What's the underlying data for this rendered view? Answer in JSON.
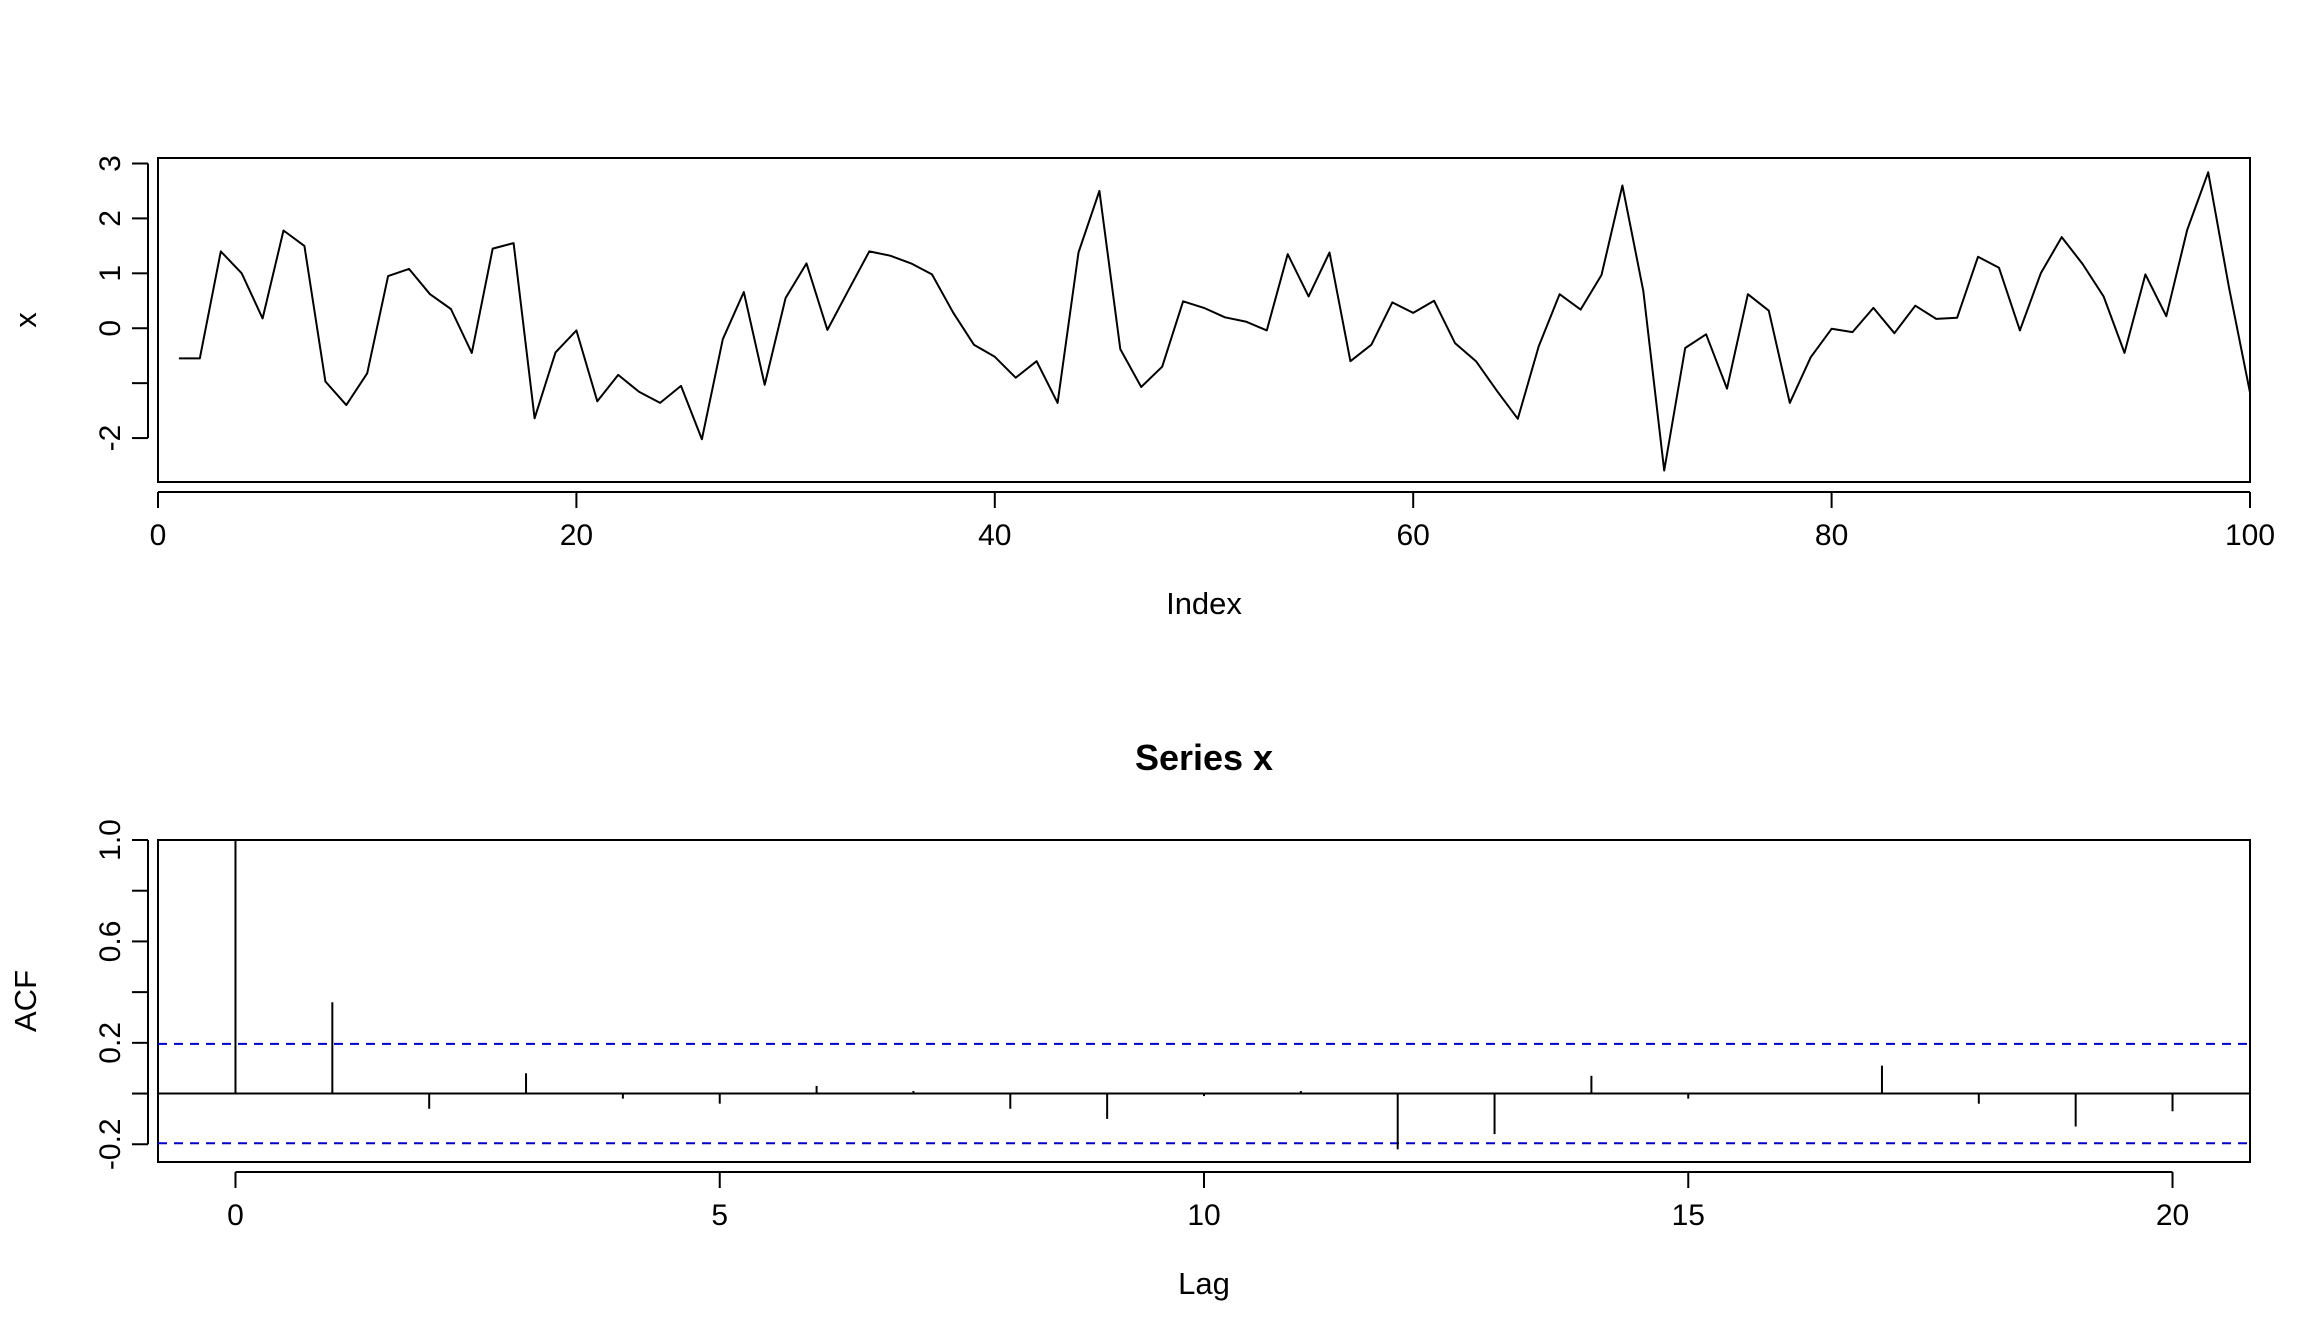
{
  "chart_data": [
    {
      "type": "line",
      "title": "",
      "xlabel": "Index",
      "ylabel": "x",
      "xlim": [
        0,
        100
      ],
      "ylim": [
        -2.8,
        3.1
      ],
      "xticks": [
        0,
        20,
        40,
        60,
        80,
        100
      ],
      "yticks": [
        -2,
        -1,
        0,
        1,
        2,
        3
      ],
      "ytick_labels": [
        "-2",
        "",
        "0",
        "1",
        "2",
        "3"
      ],
      "grid": false,
      "line_color": "#000000",
      "x": [
        1,
        2,
        3,
        4,
        5,
        6,
        7,
        8,
        9,
        10,
        11,
        12,
        13,
        14,
        15,
        16,
        17,
        18,
        19,
        20,
        21,
        22,
        23,
        24,
        25,
        26,
        27,
        28,
        29,
        30,
        31,
        32,
        33,
        34,
        35,
        36,
        37,
        38,
        39,
        40,
        41,
        42,
        43,
        44,
        45,
        46,
        47,
        48,
        49,
        50,
        51,
        52,
        53,
        54,
        55,
        56,
        57,
        58,
        59,
        60,
        61,
        62,
        63,
        64,
        65,
        66,
        67,
        68,
        69,
        70,
        71,
        72,
        73,
        74,
        75,
        76,
        77,
        78,
        79,
        80,
        81,
        82,
        83,
        84,
        85,
        86,
        87,
        88,
        89,
        90,
        91,
        92,
        93,
        94,
        95,
        96,
        97,
        98,
        99,
        100
      ],
      "y": [
        -0.55,
        -0.55,
        1.4,
        1.0,
        0.18,
        1.78,
        1.5,
        -0.97,
        -1.4,
        -0.82,
        0.95,
        1.08,
        0.62,
        0.35,
        -0.45,
        1.45,
        1.55,
        -1.64,
        -0.44,
        -0.04,
        -1.33,
        -0.85,
        -1.16,
        -1.36,
        -1.05,
        -2.02,
        -0.2,
        0.66,
        -1.03,
        0.55,
        1.18,
        -0.03,
        0.69,
        1.4,
        1.32,
        1.18,
        0.98,
        0.29,
        -0.3,
        -0.52,
        -0.9,
        -0.6,
        -1.36,
        1.38,
        2.5,
        -0.38,
        -1.07,
        -0.7,
        0.49,
        0.37,
        0.2,
        0.12,
        -0.04,
        1.35,
        0.58,
        1.38,
        -0.6,
        -0.3,
        0.47,
        0.28,
        0.5,
        -0.27,
        -0.6,
        -1.14,
        -1.65,
        -0.33,
        0.62,
        0.34,
        0.97,
        2.6,
        0.68,
        -2.59,
        -0.36,
        -0.11,
        -1.1,
        0.62,
        0.32,
        -1.36,
        -0.53,
        -0.01,
        -0.07,
        0.37,
        -0.09,
        0.41,
        0.17,
        0.19,
        1.3,
        1.1,
        -0.04,
        1.0,
        1.66,
        1.17,
        0.58,
        -0.45,
        0.98,
        0.22,
        1.79,
        2.84,
        0.73,
        -1.17
      ]
    },
    {
      "type": "bar",
      "title": "Series  x",
      "xlabel": "Lag",
      "ylabel": "ACF",
      "xlim": [
        -0.8,
        20.8
      ],
      "ylim": [
        -0.27,
        1.0
      ],
      "xticks": [
        0,
        5,
        10,
        15,
        20
      ],
      "yticks": [
        -0.2,
        0,
        0.2,
        0.4,
        0.6,
        0.8,
        1.0
      ],
      "ytick_labels": [
        "-0.2",
        "",
        "0.2",
        "",
        "0.6",
        "",
        "1.0"
      ],
      "grid": false,
      "lags": [
        0,
        1,
        2,
        3,
        4,
        5,
        6,
        7,
        8,
        9,
        10,
        11,
        12,
        13,
        14,
        15,
        16,
        17,
        18,
        19,
        20
      ],
      "acf": [
        1.0,
        0.36,
        -0.06,
        0.08,
        -0.02,
        -0.04,
        0.03,
        0.01,
        -0.06,
        -0.1,
        -0.01,
        0.01,
        -0.22,
        -0.16,
        0.07,
        -0.02,
        0.0,
        0.11,
        -0.04,
        -0.13,
        -0.07
      ],
      "confidence_bound": 0.196,
      "bound_color": "#0000cc"
    }
  ]
}
